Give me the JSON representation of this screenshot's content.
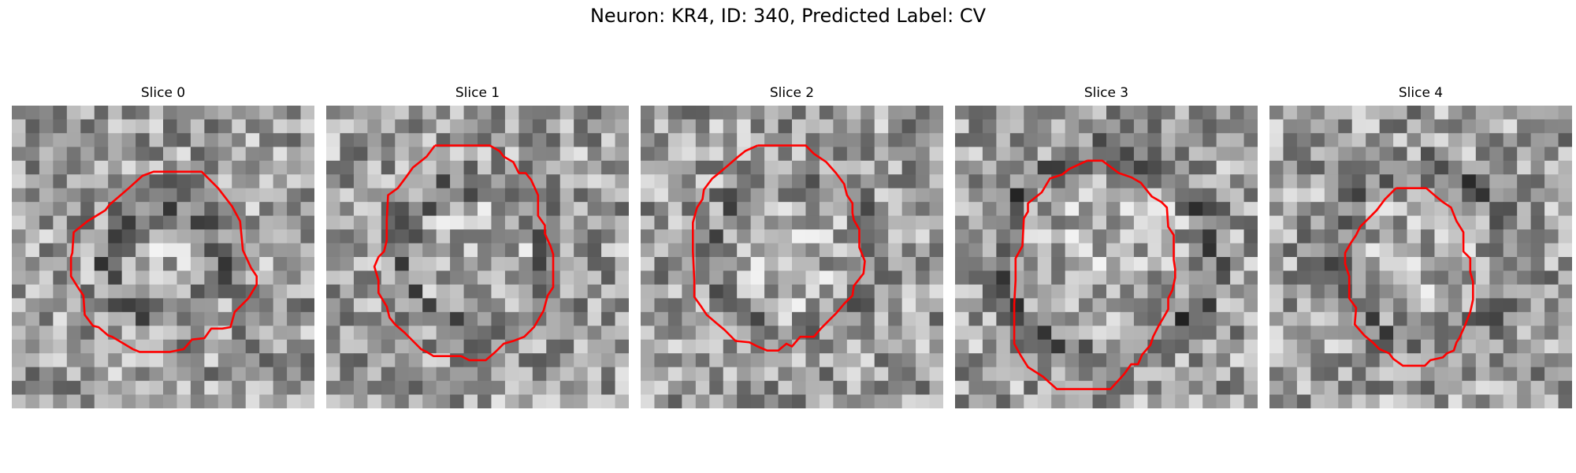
{
  "figure": {
    "title": "Neuron: KR4, ID: 340, Predicted Label: CV"
  },
  "contour_color": "#ff0000",
  "colormap": "grayscale",
  "slices": [
    {
      "title": "Slice 0",
      "seed": 11,
      "ring_darkness": 0.5,
      "ring_radius": 0.18,
      "contour": [
        [
          12.3,
          4.8
        ],
        [
          13.8,
          4.8
        ],
        [
          15,
          6
        ],
        [
          16,
          7.3
        ],
        [
          16.6,
          8.4
        ],
        [
          16.8,
          10.5
        ],
        [
          17.4,
          11.8
        ],
        [
          17.8,
          12.4
        ],
        [
          17.8,
          13
        ],
        [
          17.2,
          14
        ],
        [
          16.2,
          15
        ],
        [
          15.9,
          16.1
        ],
        [
          15.3,
          16.2
        ],
        [
          14.5,
          16.2
        ],
        [
          14,
          16.9
        ],
        [
          13.1,
          17
        ],
        [
          12.5,
          17.7
        ],
        [
          11.5,
          17.9
        ],
        [
          9.3,
          17.9
        ],
        [
          8.8,
          17.7
        ],
        [
          7.3,
          16.8
        ],
        [
          7.0,
          16.7
        ],
        [
          6.3,
          16.1
        ],
        [
          5.9,
          16
        ],
        [
          5.3,
          15.2
        ],
        [
          5.2,
          13.8
        ],
        [
          4.8,
          13.2
        ],
        [
          4.3,
          12.4
        ],
        [
          4.3,
          11
        ],
        [
          4.4,
          10.7
        ],
        [
          4.5,
          9.2
        ],
        [
          5.5,
          8.4
        ],
        [
          6.8,
          7.6
        ],
        [
          7.1,
          7.2
        ],
        [
          8.5,
          6
        ],
        [
          9.5,
          5.1
        ],
        [
          10.3,
          4.8
        ],
        [
          12.3,
          4.8
        ]
      ]
    },
    {
      "title": "Slice 1",
      "seed": 23,
      "ring_darkness": 0.35,
      "ring_radius": 0.24,
      "contour": [
        [
          7.9,
          2.9
        ],
        [
          9.2,
          2.9
        ],
        [
          11.9,
          2.9
        ],
        [
          12.6,
          3.3
        ],
        [
          12.9,
          3.7
        ],
        [
          13.6,
          4.1
        ],
        [
          14,
          4.9
        ],
        [
          14.5,
          4.9
        ],
        [
          14.9,
          5.4
        ],
        [
          15.4,
          6.5
        ],
        [
          15.4,
          8
        ],
        [
          15.9,
          8.7
        ],
        [
          15.9,
          9.3
        ],
        [
          16.3,
          10.2
        ],
        [
          16.5,
          10.8
        ],
        [
          16.5,
          13.2
        ],
        [
          16.1,
          13.8
        ],
        [
          15.8,
          14.9
        ],
        [
          15.1,
          16.1
        ],
        [
          14.4,
          16.8
        ],
        [
          13.6,
          17.1
        ],
        [
          12.9,
          17.3
        ],
        [
          12.3,
          17.9
        ],
        [
          11.6,
          18.5
        ],
        [
          10.4,
          18.5
        ],
        [
          9.8,
          18.2
        ],
        [
          7.8,
          18.2
        ],
        [
          7.3,
          17.9
        ],
        [
          6.9,
          17.7
        ],
        [
          6.3,
          17.1
        ],
        [
          5.7,
          16.5
        ],
        [
          5.0,
          15.9
        ],
        [
          4.6,
          15.4
        ],
        [
          4.4,
          14.6
        ],
        [
          3.8,
          13.6
        ],
        [
          3.8,
          12.7
        ],
        [
          3.5,
          11.7
        ],
        [
          3.8,
          11
        ],
        [
          4.2,
          10.6
        ],
        [
          4.4,
          9.8
        ],
        [
          4.4,
          8.3
        ],
        [
          4.5,
          6.5
        ],
        [
          5.2,
          6
        ],
        [
          5.8,
          5.2
        ],
        [
          6.3,
          4.5
        ],
        [
          7.3,
          3.7
        ],
        [
          7.9,
          2.9
        ]
      ]
    },
    {
      "title": "Slice 2",
      "seed": 37,
      "ring_darkness": 0.3,
      "ring_radius": 0.26,
      "contour": [
        [
          8.5,
          2.9
        ],
        [
          10.7,
          2.9
        ],
        [
          12,
          2.9
        ],
        [
          12.6,
          3.5
        ],
        [
          13.5,
          4.1
        ],
        [
          14.2,
          4.9
        ],
        [
          14.8,
          5.7
        ],
        [
          15,
          6.5
        ],
        [
          15.4,
          7.1
        ],
        [
          15.4,
          7.8
        ],
        [
          15.5,
          8.3
        ],
        [
          15.9,
          9
        ],
        [
          15.9,
          10.3
        ],
        [
          16.3,
          11.3
        ],
        [
          16.2,
          12.2
        ],
        [
          15.5,
          13.1
        ],
        [
          15.4,
          13.8
        ],
        [
          14.8,
          14.4
        ],
        [
          14.2,
          15.1
        ],
        [
          13.7,
          15.6
        ],
        [
          13.1,
          16.2
        ],
        [
          12.6,
          16.8
        ],
        [
          11.6,
          16.8
        ],
        [
          11.0,
          17.5
        ],
        [
          10.6,
          17.3
        ],
        [
          10.0,
          17.8
        ],
        [
          9.2,
          17.8
        ],
        [
          8.5,
          17.5
        ],
        [
          7.9,
          17.2
        ],
        [
          6.9,
          17.1
        ],
        [
          6.1,
          16.3
        ],
        [
          5.5,
          15.8
        ],
        [
          4.8,
          15.2
        ],
        [
          4.4,
          14.6
        ],
        [
          3.9,
          13.9
        ],
        [
          3.9,
          12.7
        ],
        [
          3.8,
          10.6
        ],
        [
          3.8,
          8.5
        ],
        [
          4.1,
          7.4
        ],
        [
          4.5,
          6.8
        ],
        [
          4.6,
          6.1
        ],
        [
          5.2,
          5.3
        ],
        [
          5.7,
          4.9
        ],
        [
          6.4,
          4.3
        ],
        [
          7.1,
          3.7
        ],
        [
          7.6,
          3.3
        ],
        [
          8.5,
          2.9
        ]
      ]
    },
    {
      "title": "Slice 3",
      "seed": 53,
      "ring_darkness": 0.55,
      "ring_radius": 0.34,
      "contour": [
        [
          9.6,
          4
        ],
        [
          10.7,
          4
        ],
        [
          11.9,
          4.9
        ],
        [
          12.8,
          5.2
        ],
        [
          13.5,
          5.6
        ],
        [
          14.3,
          6.6
        ],
        [
          15,
          7
        ],
        [
          15.4,
          7.4
        ],
        [
          15.5,
          8.8
        ],
        [
          15.9,
          9.4
        ],
        [
          15.9,
          11.2
        ],
        [
          16,
          11.9
        ],
        [
          16,
          12.5
        ],
        [
          15.8,
          13.4
        ],
        [
          15.5,
          14
        ],
        [
          15.5,
          14.8
        ],
        [
          15.1,
          15.5
        ],
        [
          14.8,
          16
        ],
        [
          14.4,
          16.8
        ],
        [
          14.2,
          17.4
        ],
        [
          13.6,
          18.1
        ],
        [
          13.3,
          18.8
        ],
        [
          12.8,
          18.8
        ],
        [
          12.3,
          19.5
        ],
        [
          11.3,
          20.6
        ],
        [
          10.3,
          20.6
        ],
        [
          8.9,
          20.6
        ],
        [
          7.4,
          20.6
        ],
        [
          6.4,
          19.7
        ],
        [
          5.3,
          19
        ],
        [
          4.8,
          18.2
        ],
        [
          4.3,
          17.3
        ],
        [
          4.3,
          16.1
        ],
        [
          4.3,
          14.4
        ],
        [
          4.4,
          12.7
        ],
        [
          4.4,
          11.1
        ],
        [
          4.9,
          10.2
        ],
        [
          5,
          8.2
        ],
        [
          5.3,
          7.7
        ],
        [
          5.3,
          7.1
        ],
        [
          6.3,
          6.3
        ],
        [
          6.9,
          5.3
        ],
        [
          7.8,
          5
        ],
        [
          8.3,
          4.6
        ],
        [
          9.6,
          4
        ]
      ]
    },
    {
      "title": "Slice 4",
      "seed": 71,
      "ring_darkness": 0.45,
      "ring_radius": 0.28,
      "contour": [
        [
          9.2,
          6
        ],
        [
          11.4,
          6
        ],
        [
          12.1,
          6.6
        ],
        [
          12.6,
          7
        ],
        [
          13.2,
          7.4
        ],
        [
          13.6,
          8.4
        ],
        [
          14.1,
          9.2
        ],
        [
          14.1,
          10.6
        ],
        [
          14.6,
          11.1
        ],
        [
          14.6,
          12.1
        ],
        [
          14.8,
          12.8
        ],
        [
          14.8,
          14.1
        ],
        [
          14.6,
          15
        ],
        [
          14.2,
          16
        ],
        [
          13.8,
          16.9
        ],
        [
          13.6,
          17.2
        ],
        [
          13.4,
          17.8
        ],
        [
          12.9,
          18
        ],
        [
          12.6,
          18.3
        ],
        [
          11.7,
          18.5
        ],
        [
          11.3,
          18.9
        ],
        [
          10.3,
          18.9
        ],
        [
          9.7,
          18.9
        ],
        [
          9,
          18.4
        ],
        [
          8.7,
          18
        ],
        [
          8,
          17.7
        ],
        [
          7.5,
          17.2
        ],
        [
          6.9,
          16.7
        ],
        [
          6.2,
          15.9
        ],
        [
          6.3,
          14.7
        ],
        [
          5.8,
          14
        ],
        [
          5.8,
          12.4
        ],
        [
          5.5,
          11.5
        ],
        [
          5.5,
          10.7
        ],
        [
          5.9,
          10
        ],
        [
          6.3,
          9.4
        ],
        [
          6.6,
          8.8
        ],
        [
          7.1,
          8.3
        ],
        [
          7.8,
          7.6
        ],
        [
          8.4,
          6.8
        ],
        [
          9.2,
          6
        ]
      ]
    }
  ]
}
